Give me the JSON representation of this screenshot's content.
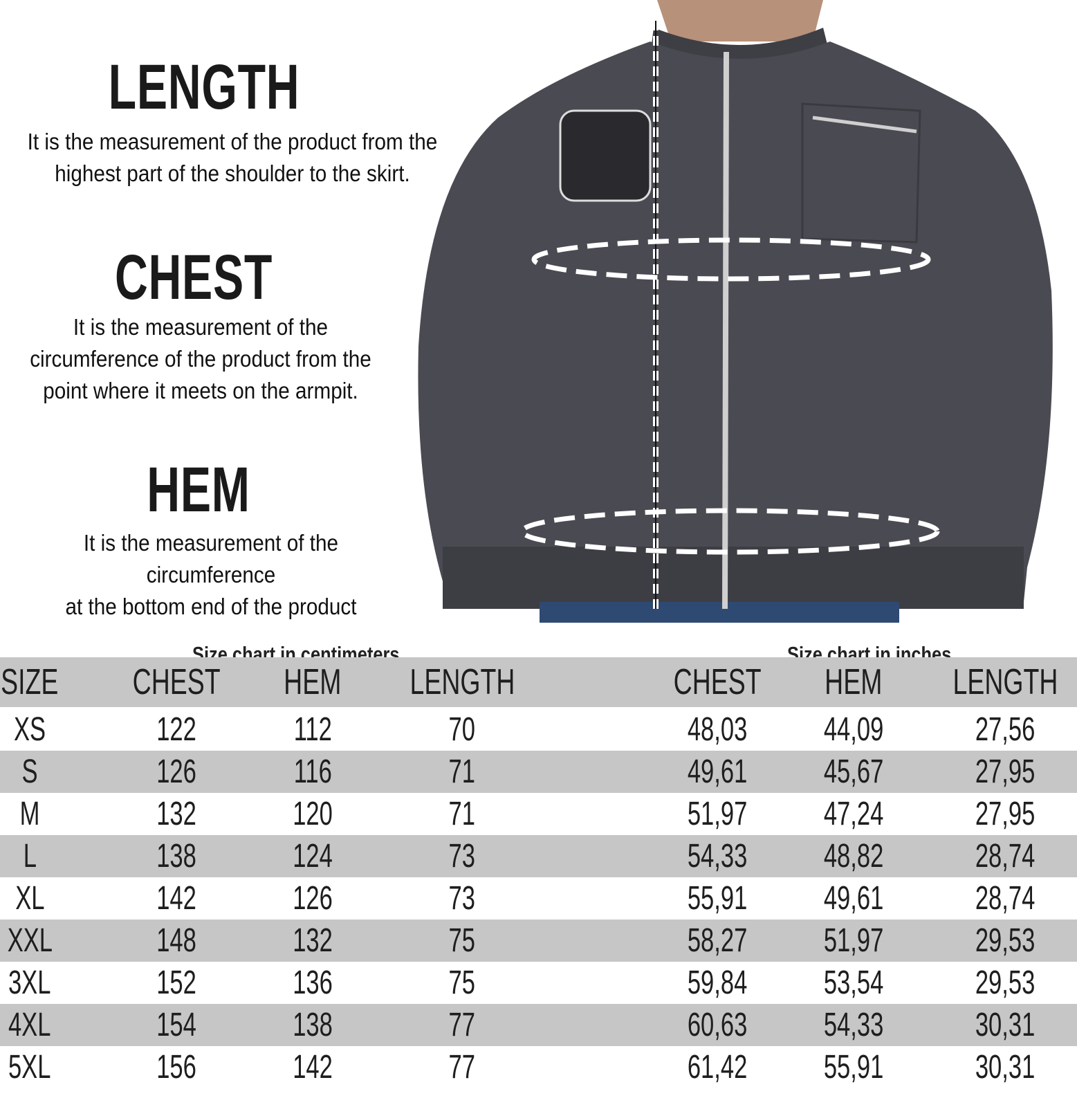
{
  "sections": [
    {
      "title": "LENGTH",
      "description": [
        "It is the measurement of the product from the",
        "highest part of the shoulder to the skirt."
      ]
    },
    {
      "title": "CHEST",
      "description": [
        "It is the measurement of the",
        "circumference of the product from the",
        "point where it meets on the armpit."
      ]
    },
    {
      "title": "HEM",
      "description": [
        "It is the measurement of the circumference",
        "at the bottom end of the product"
      ]
    }
  ],
  "captions": {
    "cm": "Size chart in centimeters",
    "inches": "Size chart in inches"
  },
  "table": {
    "headers": [
      "SIZE",
      "CHEST",
      "HEM",
      "LENGTH",
      "CHEST",
      "HEM",
      "LENGTH"
    ],
    "rows": [
      [
        "XS",
        "122",
        "112",
        "70",
        "48,03",
        "44,09",
        "27,56"
      ],
      [
        "S",
        "126",
        "116",
        "71",
        "49,61",
        "45,67",
        "27,95"
      ],
      [
        "M",
        "132",
        "120",
        "71",
        "51,97",
        "47,24",
        "27,95"
      ],
      [
        "L",
        "138",
        "124",
        "73",
        "54,33",
        "48,82",
        "28,74"
      ],
      [
        "XL",
        "142",
        "126",
        "73",
        "55,91",
        "49,61",
        "28,74"
      ],
      [
        "XXL",
        "148",
        "132",
        "75",
        "58,27",
        "51,97",
        "29,53"
      ],
      [
        "3XL",
        "152",
        "136",
        "75",
        "59,84",
        "53,54",
        "29,53"
      ],
      [
        "4XL",
        "154",
        "138",
        "77",
        "60,63",
        "54,33",
        "30,31"
      ],
      [
        "5XL",
        "156",
        "142",
        "77",
        "61,42",
        "55,91",
        "30,31"
      ]
    ]
  },
  "colors": {
    "row_stripe": "#c6c6c6",
    "jacket": "#4a4a52"
  }
}
